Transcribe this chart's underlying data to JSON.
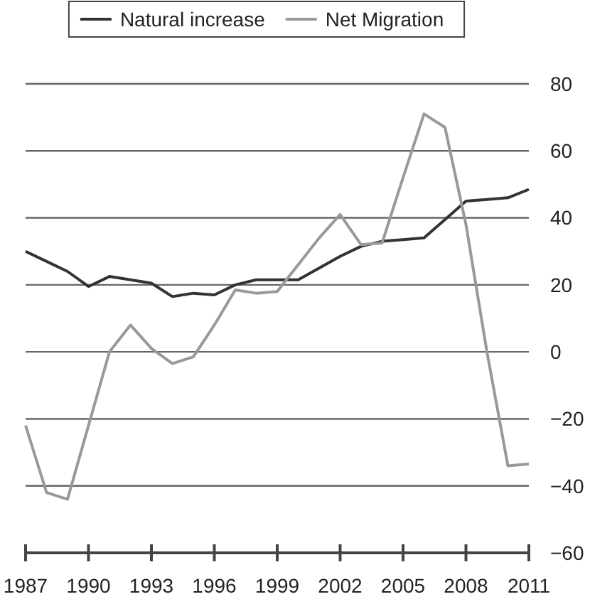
{
  "chart_data": {
    "type": "line",
    "x": [
      1987,
      1988,
      1989,
      1990,
      1991,
      1992,
      1993,
      1994,
      1995,
      1996,
      1997,
      1998,
      1999,
      2000,
      2001,
      2002,
      2003,
      2004,
      2005,
      2006,
      2007,
      2008,
      2009,
      2010,
      2011
    ],
    "series": [
      {
        "name": "Natural increase",
        "color": "#333333",
        "values": [
          30,
          27,
          24,
          19.5,
          22.5,
          21.5,
          20.5,
          16.5,
          17.5,
          17,
          20,
          21.5,
          21.5,
          21.5,
          25,
          28.5,
          31.5,
          33,
          33.5,
          34,
          39.5,
          45,
          45.5,
          46,
          48.5
        ]
      },
      {
        "name": "Net Migration",
        "color": "#999999",
        "values": [
          -22,
          -42,
          -44,
          -22,
          0,
          8,
          1,
          -3.5,
          -1.5,
          8,
          18.5,
          17.5,
          18,
          26,
          34,
          41,
          32,
          32.5,
          52,
          71,
          67,
          38,
          0,
          -34,
          -33.5
        ]
      }
    ],
    "xlim": [
      1987,
      2011
    ],
    "xticks": [
      1987,
      1990,
      1993,
      1996,
      1999,
      2002,
      2005,
      2008,
      2011
    ],
    "ylim": [
      -60,
      80
    ],
    "yticks": [
      -60,
      -40,
      -20,
      0,
      20,
      40,
      60,
      80
    ],
    "grid": "y",
    "legend": "top",
    "marker": "none",
    "line_style": "solid"
  }
}
